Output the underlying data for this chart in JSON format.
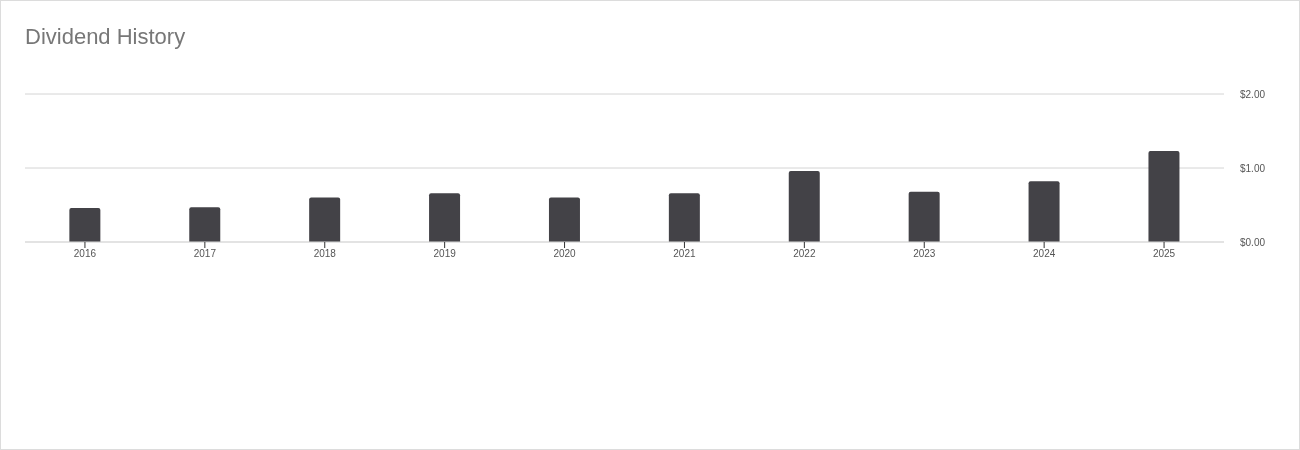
{
  "chart_data": {
    "type": "bar",
    "title": "Dividend History",
    "categories": [
      "2016",
      "2017",
      "2018",
      "2019",
      "2020",
      "2021",
      "2022",
      "2023",
      "2024",
      "2025"
    ],
    "values": [
      0.46,
      0.47,
      0.6,
      0.66,
      0.6,
      0.66,
      0.96,
      0.68,
      0.82,
      1.23
    ],
    "color": "#434247",
    "ylim": [
      0,
      2
    ],
    "yticks": [
      {
        "value": 0,
        "label": "$0.00"
      },
      {
        "value": 1,
        "label": "$1.00"
      },
      {
        "value": 2,
        "label": "$2.00"
      }
    ],
    "grid": "y",
    "legend": false
  }
}
